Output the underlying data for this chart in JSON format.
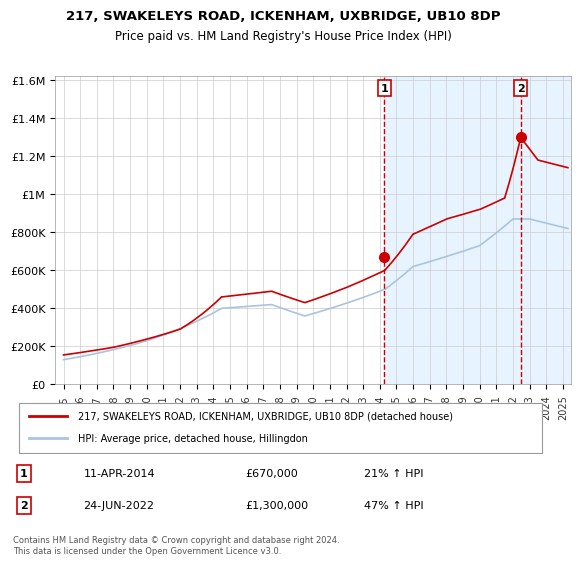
{
  "title": "217, SWAKELEYS ROAD, ICKENHAM, UXBRIDGE, UB10 8DP",
  "subtitle": "Price paid vs. HM Land Registry's House Price Index (HPI)",
  "legend_line1": "217, SWAKELEYS ROAD, ICKENHAM, UXBRIDGE, UB10 8DP (detached house)",
  "legend_line2": "HPI: Average price, detached house, Hillingdon",
  "point1_label": "1",
  "point1_date": "11-APR-2014",
  "point1_price": "£670,000",
  "point1_hpi": "21% ↑ HPI",
  "point2_label": "2",
  "point2_date": "24-JUN-2022",
  "point2_price": "£1,300,000",
  "point2_hpi": "47% ↑ HPI",
  "footer": "Contains HM Land Registry data © Crown copyright and database right 2024.\nThis data is licensed under the Open Government Licence v3.0.",
  "hpi_color": "#aac4e0",
  "price_color": "#cc0000",
  "bg_highlight_color": "#ddeeff",
  "point_color": "#cc0000",
  "xlabel_color": "#333333",
  "grid_color": "#cccccc",
  "ylim": [
    0,
    1600000
  ],
  "xlim_start": 1995.0,
  "xlim_end": 2025.5,
  "vline1_x": 2014.27,
  "vline2_x": 2022.47,
  "point1_x": 2014.27,
  "point1_y": 670000,
  "point2_x": 2022.47,
  "point2_y": 1300000
}
